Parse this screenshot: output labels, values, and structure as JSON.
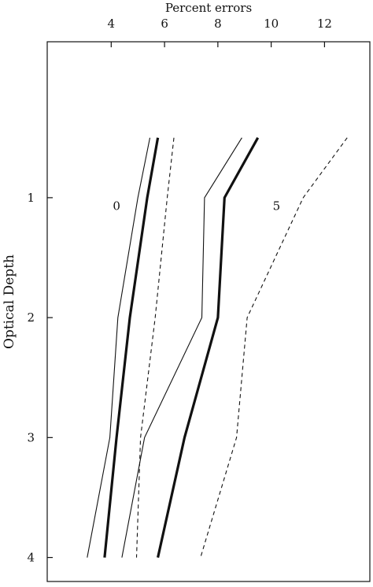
{
  "chart_data": {
    "type": "line",
    "title": "",
    "xlabel": "Percent errors",
    "ylabel": "Optical Depth",
    "xlim": [
      1.6,
      13.7
    ],
    "ylim": [
      4.2,
      -0.3
    ],
    "x_ticks": [
      4,
      6,
      8,
      10,
      12
    ],
    "x_tick_labels": [
      "4",
      "6",
      "8",
      "10",
      "12"
    ],
    "y_ticks": [
      1,
      2,
      3,
      4
    ],
    "y_tick_labels": [
      "1",
      "2",
      "3",
      "4"
    ],
    "x_axis_position": "top",
    "grid": false,
    "legend": "none",
    "annotations": [
      {
        "text": "0",
        "x": 4.2,
        "y": 1.07
      },
      {
        "text": "5",
        "x": 10.2,
        "y": 1.07
      }
    ],
    "series": [
      {
        "group": "0",
        "style": "thin",
        "points": [
          [
            5.45,
            0.5
          ],
          [
            5.0,
            1.0
          ],
          [
            4.25,
            2.0
          ],
          [
            3.95,
            3.0
          ],
          [
            3.1,
            4.0
          ]
        ]
      },
      {
        "group": "0",
        "style": "thick",
        "points": [
          [
            5.75,
            0.5
          ],
          [
            5.35,
            1.0
          ],
          [
            4.7,
            2.0
          ],
          [
            4.2,
            3.0
          ],
          [
            3.75,
            4.0
          ]
        ]
      },
      {
        "group": "0",
        "style": "dashed",
        "points": [
          [
            6.35,
            0.5
          ],
          [
            6.1,
            1.0
          ],
          [
            5.65,
            2.0
          ],
          [
            5.1,
            3.0
          ],
          [
            4.95,
            4.0
          ]
        ]
      },
      {
        "group": "5",
        "style": "thin",
        "points": [
          [
            8.9,
            0.5
          ],
          [
            7.5,
            1.0
          ],
          [
            7.4,
            2.0
          ],
          [
            5.25,
            3.0
          ],
          [
            4.4,
            4.0
          ]
        ]
      },
      {
        "group": "5",
        "style": "thick",
        "points": [
          [
            9.5,
            0.5
          ],
          [
            8.25,
            1.0
          ],
          [
            8.0,
            2.0
          ],
          [
            6.75,
            3.0
          ],
          [
            5.75,
            4.0
          ]
        ]
      },
      {
        "group": "5",
        "style": "dashed",
        "points": [
          [
            12.85,
            0.5
          ],
          [
            11.2,
            1.0
          ],
          [
            9.1,
            2.0
          ],
          [
            8.7,
            3.0
          ],
          [
            7.35,
            4.0
          ]
        ]
      }
    ]
  }
}
